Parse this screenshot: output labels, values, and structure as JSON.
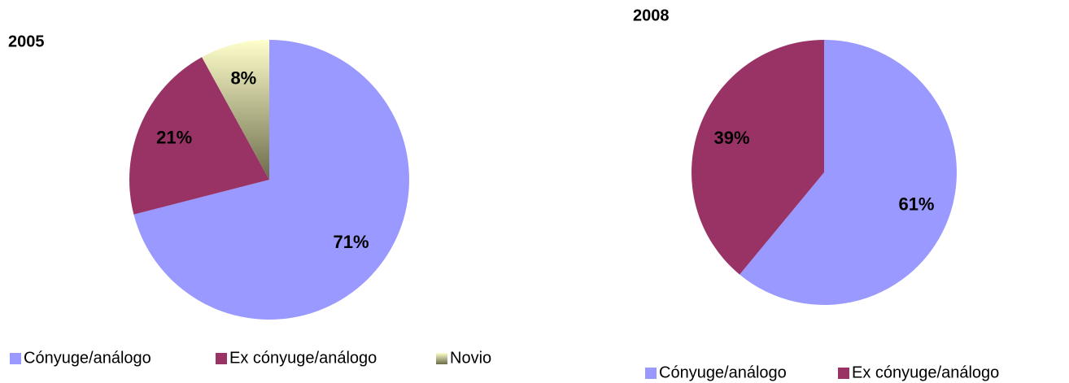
{
  "chart_data": [
    {
      "type": "pie",
      "title": "2005",
      "categories": [
        "Cónyuge/análogo",
        "Ex cónyuge/análogo",
        "Novio"
      ],
      "values": [
        71,
        21,
        8
      ],
      "value_labels": [
        "71%",
        "21%",
        "8%"
      ],
      "colors": [
        "#9999ff",
        "#993366",
        "#ffffcc"
      ]
    },
    {
      "type": "pie",
      "title": "2008",
      "categories": [
        "Cónyuge/análogo",
        "Ex cónyuge/análogo"
      ],
      "values": [
        61,
        39
      ],
      "value_labels": [
        "61%",
        "39%"
      ],
      "colors": [
        "#9999ff",
        "#993366"
      ]
    }
  ]
}
